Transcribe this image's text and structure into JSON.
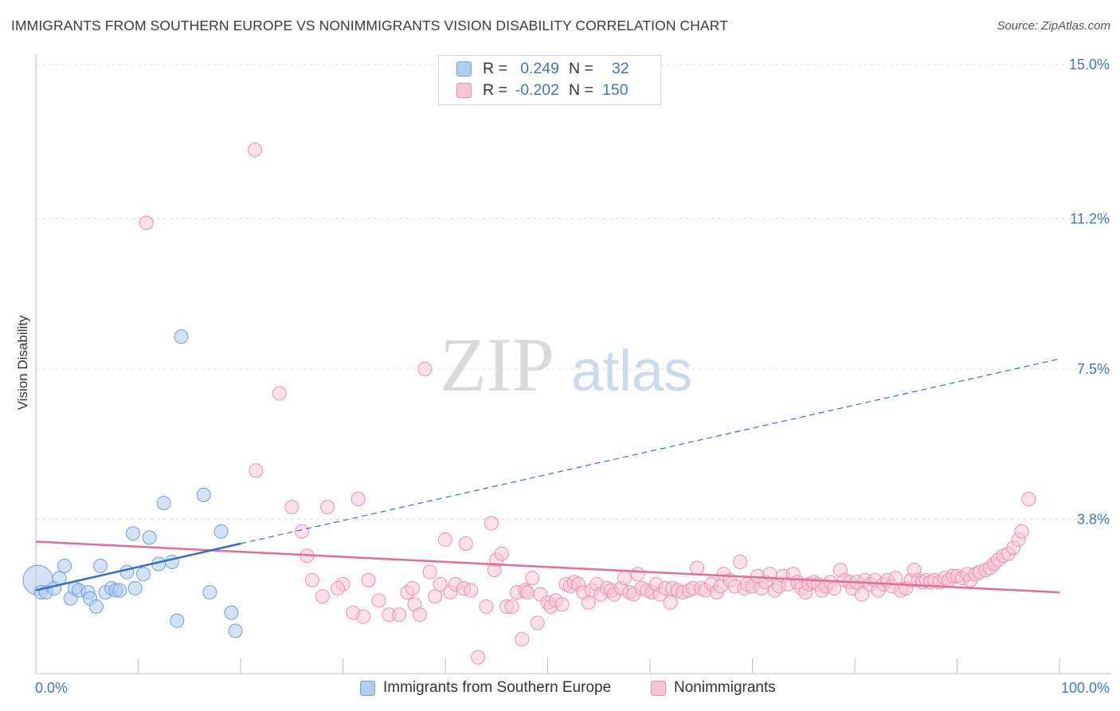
{
  "title": "IMMIGRANTS FROM SOUTHERN EUROPE VS NONIMMIGRANTS VISION DISABILITY CORRELATION CHART",
  "source": "Source: ZipAtlas.com",
  "watermark": {
    "zip": "ZIP",
    "atlas": "atlas"
  },
  "legend_box": {
    "rows": [
      {
        "r_label": "R =",
        "r_value": "0.249",
        "n_label": "N =",
        "n_value": "32",
        "color": "#aecbf0",
        "border": "#6f9fdc"
      },
      {
        "r_label": "R =",
        "r_value": "-0.202",
        "n_label": "N =",
        "n_value": "150",
        "color": "#f9c3d3",
        "border": "#ef8fab"
      }
    ]
  },
  "bottom_legend": [
    {
      "label": "Immigrants from Southern Europe",
      "color": "#aecbf0",
      "border": "#6f9fdc"
    },
    {
      "label": "Nonimmigrants",
      "color": "#f9c3d3",
      "border": "#ef8fab"
    }
  ],
  "colors": {
    "blue_fill": "rgba(174,203,240,0.55)",
    "blue_stroke": "#6f9fdc",
    "blue_line": "#2f6fcb",
    "pink_fill": "rgba(249,195,211,0.5)",
    "pink_stroke": "#ef8fab",
    "pink_line": "#e56b95",
    "axis_label": "#3f76c3",
    "grid": "#dcdcdc"
  },
  "chart_data": {
    "type": "scatter",
    "title": "IMMIGRANTS FROM SOUTHERN EUROPE VS NONIMMIGRANTS VISION DISABILITY CORRELATION CHART",
    "xlabel": "",
    "ylabel": "Vision Disability",
    "x_tick_labels": [
      "0.0%",
      "100.0%"
    ],
    "y_tick_labels": [
      "3.8%",
      "7.5%",
      "11.2%",
      "15.0%"
    ],
    "y_ticks": [
      3.8,
      7.5,
      11.2,
      15.0
    ],
    "xlim": [
      0,
      100
    ],
    "ylim": [
      0,
      15.0
    ],
    "grid": true,
    "legend_position": "top-center",
    "series": [
      {
        "name": "Immigrants from Southern Europe",
        "color": "#aecbf0",
        "points": [
          [
            0.2,
            2.3,
            2.2
          ],
          [
            0.5,
            2.0,
            1
          ],
          [
            1,
            2.0,
            1
          ],
          [
            1.8,
            2.1,
            1
          ],
          [
            2.3,
            2.35,
            1
          ],
          [
            2.8,
            2.65,
            1
          ],
          [
            3.4,
            1.85,
            1
          ],
          [
            3.8,
            2.1,
            1
          ],
          [
            4.2,
            2.05,
            1
          ],
          [
            5.1,
            2.0,
            1
          ],
          [
            5.3,
            1.85,
            1
          ],
          [
            5.9,
            1.65,
            1
          ],
          [
            6.3,
            2.65,
            1
          ],
          [
            6.8,
            2.0,
            1
          ],
          [
            7.4,
            2.1,
            1
          ],
          [
            7.8,
            2.05,
            1
          ],
          [
            8.2,
            2.05,
            1
          ],
          [
            8.9,
            2.5,
            1
          ],
          [
            9.5,
            3.45,
            1
          ],
          [
            9.7,
            2.1,
            1
          ],
          [
            10.5,
            2.45,
            1
          ],
          [
            11.1,
            3.35,
            1
          ],
          [
            12.0,
            2.7,
            1
          ],
          [
            12.5,
            4.2,
            1
          ],
          [
            13.3,
            2.75,
            1
          ],
          [
            13.8,
            1.3,
            1
          ],
          [
            14.2,
            8.3,
            1
          ],
          [
            16.4,
            4.4,
            1
          ],
          [
            17.0,
            2.0,
            1
          ],
          [
            18.1,
            3.5,
            1
          ],
          [
            19.1,
            1.5,
            1
          ],
          [
            19.5,
            1.05,
            1
          ]
        ],
        "trend": {
          "x": [
            0,
            20
          ],
          "y": [
            2.05,
            3.2
          ]
        },
        "trend_extension": {
          "x": [
            20,
            100
          ],
          "y": [
            3.2,
            7.75
          ]
        }
      },
      {
        "name": "Nonimmigrants",
        "color": "#f9c3d3",
        "points": [
          [
            10.8,
            11.1
          ],
          [
            21.4,
            12.9
          ],
          [
            23.8,
            6.9
          ],
          [
            21.5,
            5.0
          ],
          [
            25.0,
            4.1
          ],
          [
            26.0,
            3.5
          ],
          [
            26.5,
            2.9
          ],
          [
            27.0,
            2.3
          ],
          [
            28.0,
            1.9
          ],
          [
            28.5,
            4.1
          ],
          [
            30.0,
            2.2
          ],
          [
            29.5,
            2.1
          ],
          [
            31.0,
            1.5
          ],
          [
            31.5,
            4.3
          ],
          [
            32.0,
            1.4
          ],
          [
            32.5,
            2.3
          ],
          [
            33.5,
            1.8
          ],
          [
            34.5,
            1.45
          ],
          [
            35.5,
            1.45
          ],
          [
            36.3,
            2.0
          ],
          [
            36.8,
            2.1
          ],
          [
            37.0,
            1.7
          ],
          [
            37.5,
            1.45
          ],
          [
            38.0,
            7.5
          ],
          [
            38.5,
            2.5
          ],
          [
            39.0,
            1.9
          ],
          [
            39.5,
            2.2
          ],
          [
            40.0,
            3.3
          ],
          [
            40.5,
            2.0
          ],
          [
            41.0,
            2.2
          ],
          [
            41.8,
            2.1
          ],
          [
            42.0,
            3.2
          ],
          [
            42.5,
            2.05
          ],
          [
            43.2,
            0.4
          ],
          [
            44.0,
            1.65
          ],
          [
            44.5,
            3.7
          ],
          [
            44.8,
            2.55
          ],
          [
            45.0,
            2.8
          ],
          [
            45.5,
            2.95
          ],
          [
            46.0,
            1.65
          ],
          [
            46.5,
            1.65
          ],
          [
            47.0,
            2.0
          ],
          [
            47.5,
            0.85
          ],
          [
            47.8,
            2.05
          ],
          [
            48.0,
            2.0
          ],
          [
            48.5,
            2.35
          ],
          [
            49.0,
            1.25
          ],
          [
            49.3,
            1.95
          ],
          [
            50.0,
            1.75
          ],
          [
            50.3,
            1.65
          ],
          [
            50.8,
            1.8
          ],
          [
            51.4,
            1.7
          ],
          [
            51.8,
            2.2
          ],
          [
            52.2,
            2.15
          ],
          [
            52.6,
            2.25
          ],
          [
            53.0,
            2.2
          ],
          [
            53.5,
            2.0
          ],
          [
            54.0,
            1.75
          ],
          [
            54.3,
            2.05
          ],
          [
            54.8,
            2.2
          ],
          [
            55.2,
            1.95
          ],
          [
            55.8,
            2.1
          ],
          [
            56.2,
            2.05
          ],
          [
            56.5,
            1.95
          ],
          [
            57.2,
            2.1
          ],
          [
            57.5,
            2.35
          ],
          [
            58.0,
            2.0
          ],
          [
            58.4,
            1.95
          ],
          [
            58.8,
            2.45
          ],
          [
            59.2,
            2.1
          ],
          [
            59.7,
            2.05
          ],
          [
            60.2,
            2.0
          ],
          [
            60.6,
            2.2
          ],
          [
            61.0,
            1.95
          ],
          [
            61.5,
            2.1
          ],
          [
            62.0,
            1.75
          ],
          [
            62.2,
            2.1
          ],
          [
            62.7,
            2.05
          ],
          [
            63.2,
            2.0
          ],
          [
            63.8,
            2.05
          ],
          [
            64.2,
            2.1
          ],
          [
            64.6,
            2.6
          ],
          [
            65.0,
            2.1
          ],
          [
            65.4,
            2.05
          ],
          [
            66.0,
            2.2
          ],
          [
            66.5,
            2.0
          ],
          [
            66.9,
            2.15
          ],
          [
            67.2,
            2.45
          ],
          [
            67.8,
            2.3
          ],
          [
            68.3,
            2.15
          ],
          [
            68.8,
            2.75
          ],
          [
            69.2,
            2.1
          ],
          [
            69.5,
            2.2
          ],
          [
            70.0,
            2.15
          ],
          [
            70.5,
            2.4
          ],
          [
            70.9,
            2.1
          ],
          [
            71.3,
            2.25
          ],
          [
            71.7,
            2.45
          ],
          [
            72.2,
            2.05
          ],
          [
            72.6,
            2.15
          ],
          [
            73.0,
            2.4
          ],
          [
            73.5,
            2.2
          ],
          [
            74.0,
            2.45
          ],
          [
            74.4,
            2.25
          ],
          [
            74.8,
            2.1
          ],
          [
            75.2,
            2.0
          ],
          [
            75.5,
            2.2
          ],
          [
            76.0,
            2.25
          ],
          [
            76.4,
            2.2
          ],
          [
            76.8,
            2.05
          ],
          [
            77.2,
            2.15
          ],
          [
            77.6,
            2.25
          ],
          [
            78.0,
            2.1
          ],
          [
            78.6,
            2.55
          ],
          [
            79.0,
            2.3
          ],
          [
            79.5,
            2.25
          ],
          [
            79.8,
            2.1
          ],
          [
            80.2,
            2.25
          ],
          [
            80.7,
            1.95
          ],
          [
            81.0,
            2.3
          ],
          [
            81.5,
            2.2
          ],
          [
            82.0,
            2.3
          ],
          [
            82.3,
            2.05
          ],
          [
            82.8,
            2.2
          ],
          [
            83.2,
            2.3
          ],
          [
            83.6,
            2.15
          ],
          [
            84.0,
            2.35
          ],
          [
            84.5,
            2.05
          ],
          [
            85.0,
            2.1
          ],
          [
            85.5,
            2.3
          ],
          [
            85.8,
            2.55
          ],
          [
            86.2,
            2.3
          ],
          [
            86.6,
            2.25
          ],
          [
            87.0,
            2.3
          ],
          [
            87.4,
            2.25
          ],
          [
            87.8,
            2.3
          ],
          [
            88.3,
            2.25
          ],
          [
            88.8,
            2.35
          ],
          [
            89.2,
            2.3
          ],
          [
            89.6,
            2.4
          ],
          [
            90.0,
            2.4
          ],
          [
            90.5,
            2.35
          ],
          [
            91.0,
            2.45
          ],
          [
            91.3,
            2.3
          ],
          [
            91.8,
            2.45
          ],
          [
            92.2,
            2.5
          ],
          [
            92.8,
            2.55
          ],
          [
            93.2,
            2.6
          ],
          [
            93.6,
            2.7
          ],
          [
            94.0,
            2.8
          ],
          [
            94.5,
            2.9
          ],
          [
            95.0,
            2.95
          ],
          [
            95.5,
            3.1
          ],
          [
            96.0,
            3.3
          ],
          [
            96.3,
            3.5
          ],
          [
            97.0,
            4.3
          ]
        ],
        "trend": {
          "x": [
            0,
            100
          ],
          "y": [
            3.25,
            2.0
          ]
        }
      }
    ]
  }
}
